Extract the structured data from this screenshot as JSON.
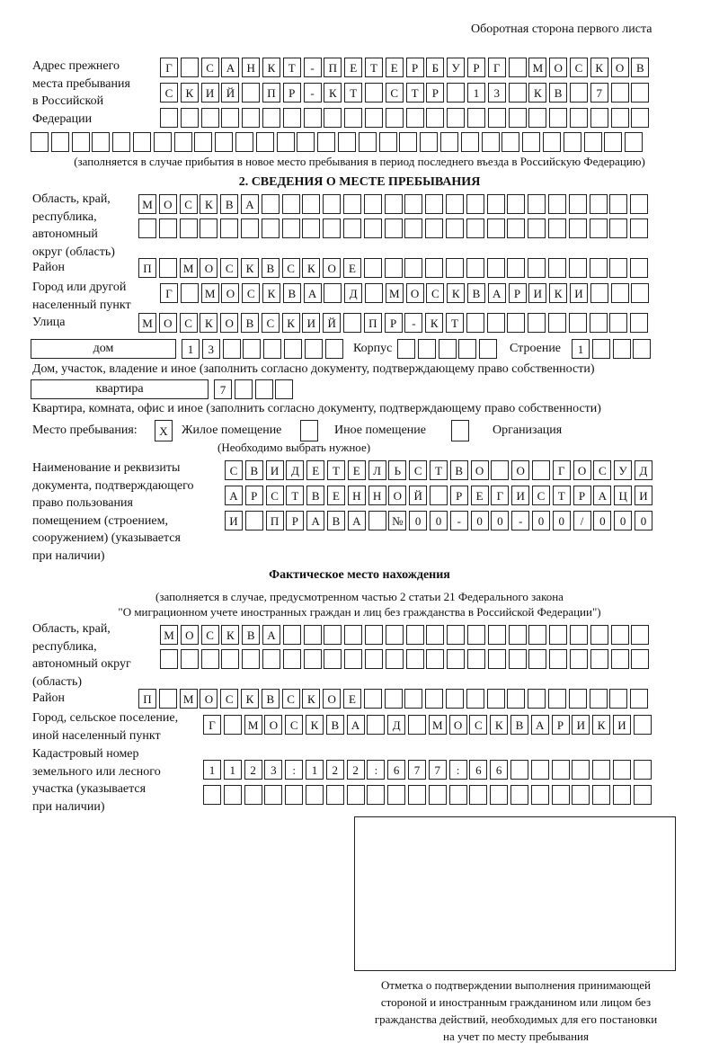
{
  "header": "Оборотная сторона первого листа",
  "prev_address": {
    "label": [
      "Адрес прежнего",
      "места пребывания",
      "в Российской",
      "Федерации"
    ],
    "rows": [
      [
        "Г",
        "",
        "С",
        "А",
        "Н",
        "К",
        "Т",
        "-",
        "П",
        "Е",
        "Т",
        "Е",
        "Р",
        "Б",
        "У",
        "Р",
        "Г",
        "",
        "М",
        "О",
        "С",
        "К",
        "О",
        "В"
      ],
      [
        "С",
        "К",
        "И",
        "Й",
        "",
        "П",
        "Р",
        "-",
        "К",
        "Т",
        "",
        "С",
        "Т",
        "Р",
        "",
        "1",
        "3",
        "",
        "К",
        "В",
        "",
        "7",
        "",
        ""
      ],
      [],
      []
    ],
    "note": "(заполняется в случае прибытия в новое место пребывания в период последнего въезда в Российскую Федерацию)"
  },
  "section2": {
    "title": "2. СВЕДЕНИЯ О МЕСТЕ ПРЕБЫВАНИЯ",
    "region_label": [
      "Область, край,",
      "республика,",
      "автономный",
      "округ (область)"
    ],
    "region_rows": [
      [
        "М",
        "О",
        "С",
        "К",
        "В",
        "А"
      ],
      []
    ],
    "district_label": "Район",
    "district": [
      "П",
      "",
      "М",
      "О",
      "С",
      "К",
      "В",
      "С",
      "К",
      "О",
      "Е"
    ],
    "city_label": [
      "Город или другой",
      "населенный пункт"
    ],
    "city": [
      "Г",
      "",
      "М",
      "О",
      "С",
      "К",
      "В",
      "А",
      "",
      "Д",
      "",
      "М",
      "О",
      "С",
      "К",
      "В",
      "А",
      "Р",
      "И",
      "К",
      "И"
    ],
    "street_label": "Улица",
    "street": [
      "М",
      "О",
      "С",
      "К",
      "О",
      "В",
      "С",
      "К",
      "И",
      "Й",
      "",
      "П",
      "Р",
      "-",
      "К",
      "Т"
    ],
    "house_type": "дом",
    "house": [
      "1",
      "3"
    ],
    "korpus_label": "Корпус",
    "korpus": [],
    "building_label": "Строение",
    "building": [
      "1"
    ],
    "house_note": "Дом, участок, владение и иное (заполнить согласно документу, подтверждающему право собственности)",
    "flat_type": "квартира",
    "flat": [
      "7"
    ],
    "flat_note": "Квартира, комната, офис и иное (заполнить согласно документу, подтверждающему право собственности)",
    "place_label": "Место пребывания:",
    "place_options": [
      {
        "mark": "X",
        "label": "Жилое помещение"
      },
      {
        "mark": "",
        "label": "Иное помещение"
      },
      {
        "mark": "",
        "label": "Организация"
      }
    ],
    "place_note": "(Необходимо выбрать нужное)",
    "doc_label": [
      "Наименование и реквизиты",
      "документа, подтверждающего",
      "право пользования",
      "помещением (строением,",
      "сооружением) (указывается",
      "при наличии)"
    ],
    "doc_rows": [
      [
        "С",
        "В",
        "И",
        "Д",
        "Е",
        "Т",
        "Е",
        "Л",
        "Ь",
        "С",
        "Т",
        "В",
        "О",
        "",
        "О",
        "",
        "Г",
        "О",
        "С",
        "У",
        "Д"
      ],
      [
        "А",
        "Р",
        "С",
        "Т",
        "В",
        "Е",
        "Н",
        "Н",
        "О",
        "Й",
        "",
        "Р",
        "Е",
        "Г",
        "И",
        "С",
        "Т",
        "Р",
        "А",
        "Ц",
        "И"
      ],
      [
        "И",
        "",
        "П",
        "Р",
        "А",
        "В",
        "А",
        "",
        "№",
        "0",
        "0",
        "-",
        "0",
        "0",
        "-",
        "0",
        "0",
        "/",
        "0",
        "0",
        "0"
      ]
    ]
  },
  "actual": {
    "title": "Фактическое место нахождения",
    "note": [
      "(заполняется в случае, предусмотренном частью 2 статьи 21 Федерального закона",
      "\"О миграционном учете иностранных граждан и лиц без гражданства в Российской Федерации\")"
    ],
    "region_label": [
      "Область, край,",
      "республика,",
      "автономный округ",
      "(область)"
    ],
    "region_rows": [
      [
        "М",
        "О",
        "С",
        "К",
        "В",
        "А"
      ],
      []
    ],
    "district_label": "Район",
    "district": [
      "П",
      "",
      "М",
      "О",
      "С",
      "К",
      "В",
      "С",
      "К",
      "О",
      "Е"
    ],
    "city_label": [
      "Город, сельское поселение,",
      "иной населенный пункт"
    ],
    "city": [
      "Г",
      "",
      "М",
      "О",
      "С",
      "К",
      "В",
      "А",
      "",
      "Д",
      "",
      "М",
      "О",
      "С",
      "К",
      "В",
      "А",
      "Р",
      "И",
      "К",
      "И"
    ],
    "cadastre_label": [
      "Кадастровый номер",
      "земельного или лесного",
      "участка (указывается",
      "при наличии)"
    ],
    "cadastre_rows": [
      [
        "1",
        "1",
        "2",
        "3",
        ":",
        "1",
        "2",
        "2",
        ":",
        "6",
        "7",
        "7",
        ":",
        "6",
        "6"
      ],
      []
    ]
  },
  "confirmation": {
    "caption": [
      "Отметка о подтверждении выполнения принимающей",
      "стороной и иностранным гражданином или лицом без",
      "гражданства действий, необходимых для его постановки",
      "на учет по месту пребывания"
    ]
  }
}
